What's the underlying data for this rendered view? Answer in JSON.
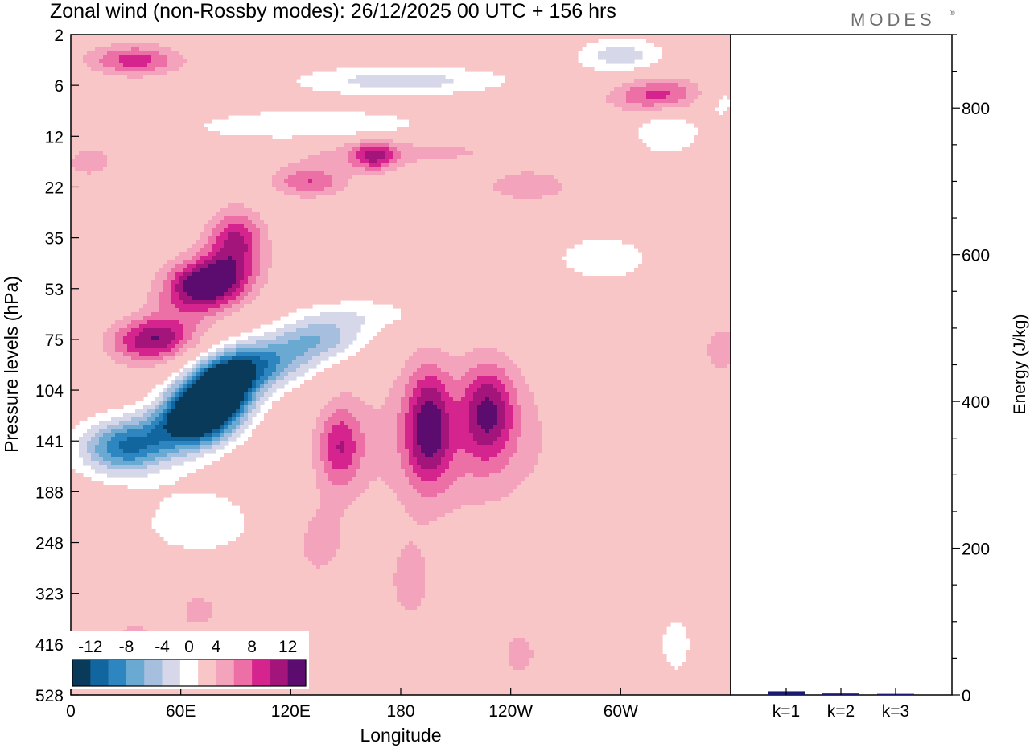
{
  "title": "Zonal wind (non-Rossby modes):  26/12/2025  00 UTC  + 156 hrs",
  "logo_text": "MODES",
  "logo_mark": "®",
  "chart_data": [
    {
      "type": "heatmap",
      "name": "zonal-wind-section",
      "xlabel": "Longitude",
      "ylabel": "Pressure levels (hPa)",
      "x_ticks": [
        "0",
        "60E",
        "120E",
        "180",
        "120W",
        "60W"
      ],
      "x_tick_values": [
        0,
        60,
        120,
        180,
        240,
        300
      ],
      "xlim": [
        0,
        360
      ],
      "y_ticks": [
        "2",
        "6",
        "12",
        "22",
        "35",
        "53",
        "75",
        "104",
        "141",
        "188",
        "248",
        "323",
        "416",
        "528"
      ],
      "colorbar": {
        "labels": [
          "-12",
          "-8",
          "-4",
          "0",
          "4",
          "8",
          "12"
        ],
        "levels": [
          -14,
          -12,
          -10,
          -8,
          -6,
          -4,
          -2,
          2,
          4,
          6,
          8,
          10,
          12,
          14
        ],
        "colors": [
          "#0a3a5a",
          "#1266a0",
          "#2e86c1",
          "#6aa9d2",
          "#a7bfdf",
          "#d6d8ea",
          "#ffffff",
          "#f8c6c6",
          "#f4a3bd",
          "#ec6fa6",
          "#d6248f",
          "#a3157a",
          "#5c0c6e"
        ]
      },
      "features": [
        {
          "lon": 70,
          "lev": 7.5,
          "lon_w": 22,
          "lev_w": 0.6,
          "tilt": -0.08,
          "amp": -20
        },
        {
          "lon": 82,
          "lev": 6.9,
          "lon_w": 18,
          "lev_w": 0.55,
          "tilt": -0.08,
          "amp": -16
        },
        {
          "lon": 30,
          "lev": 8.1,
          "lon_w": 25,
          "lev_w": 0.55,
          "tilt": -0.03,
          "amp": -12
        },
        {
          "lon": 105,
          "lev": 6.5,
          "lon_w": 25,
          "lev_w": 0.5,
          "tilt": -0.05,
          "amp": -9
        },
        {
          "lon": 135,
          "lev": 6.0,
          "lon_w": 25,
          "lev_w": 0.45,
          "tilt": -0.04,
          "amp": -7
        },
        {
          "lon": 70,
          "lev": 9.6,
          "lon_w": 40,
          "lev_w": 0.9,
          "tilt": 0,
          "amp": -3
        },
        {
          "lon": 75,
          "lev": 4.9,
          "lon_w": 22,
          "lev_w": 0.55,
          "tilt": -0.1,
          "amp": 14
        },
        {
          "lon": 45,
          "lev": 6.0,
          "lon_w": 22,
          "lev_w": 0.45,
          "tilt": -0.07,
          "amp": 10
        },
        {
          "lon": 90,
          "lev": 4.0,
          "lon_w": 15,
          "lev_w": 0.55,
          "tilt": 0,
          "amp": 8
        },
        {
          "lon": 195,
          "lev": 7.7,
          "lon_w": 12,
          "lev_w": 1.1,
          "tilt": 0,
          "amp": 9
        },
        {
          "lon": 228,
          "lev": 7.4,
          "lon_w": 14,
          "lev_w": 0.9,
          "tilt": 0,
          "amp": 8
        },
        {
          "lon": 147,
          "lev": 8.1,
          "lon_w": 12,
          "lev_w": 0.8,
          "tilt": 0,
          "amp": 7
        },
        {
          "lon": 210,
          "lev": 8.0,
          "lon_w": 55,
          "lev_w": 1.5,
          "tilt": 0,
          "amp": 4
        },
        {
          "lon": 185,
          "lev": 10.8,
          "lon_w": 15,
          "lev_w": 1.0,
          "tilt": 0,
          "amp": 2.6
        },
        {
          "lon": 135,
          "lev": 10.0,
          "lon_w": 20,
          "lev_w": 1.0,
          "tilt": 0,
          "amp": 2.6
        },
        {
          "lon": 70,
          "lev": 11.3,
          "lon_w": 18,
          "lev_w": 0.7,
          "tilt": 0,
          "amp": 2.4
        },
        {
          "lon": 130,
          "lev": 1.8,
          "lon_w": 70,
          "lev_w": 0.35,
          "tilt": -0.05,
          "amp": -4
        },
        {
          "lon": 180,
          "lev": 0.9,
          "lon_w": 60,
          "lev_w": 0.3,
          "tilt": -0.04,
          "amp": -5
        },
        {
          "lon": 300,
          "lev": 0.4,
          "lon_w": 25,
          "lev_w": 0.35,
          "tilt": 0,
          "amp": -5
        },
        {
          "lon": 325,
          "lev": 1.9,
          "lon_w": 20,
          "lev_w": 0.5,
          "tilt": 0,
          "amp": -4
        },
        {
          "lon": 290,
          "lev": 4.4,
          "lon_w": 45,
          "lev_w": 0.8,
          "tilt": 0,
          "amp": -2.5
        },
        {
          "lon": 160,
          "lev": 5.5,
          "lon_w": 35,
          "lev_w": 0.35,
          "tilt": -0.04,
          "amp": -3
        },
        {
          "lon": 35,
          "lev": 0.5,
          "lon_w": 25,
          "lev_w": 0.3,
          "tilt": 0,
          "amp": 7
        },
        {
          "lon": 320,
          "lev": 1.2,
          "lon_w": 25,
          "lev_w": 0.35,
          "tilt": -0.06,
          "amp": 7
        },
        {
          "lon": 175,
          "lev": 2.3,
          "lon_w": 70,
          "lev_w": 0.3,
          "tilt": -0.04,
          "amp": 3
        },
        {
          "lon": 165,
          "lev": 2.4,
          "lon_w": 12,
          "lev_w": 0.3,
          "tilt": 0,
          "amp": 7
        },
        {
          "lon": 130,
          "lev": 2.9,
          "lon_w": 20,
          "lev_w": 0.3,
          "tilt": 0,
          "amp": 6
        },
        {
          "lon": 250,
          "lev": 3.0,
          "lon_w": 30,
          "lev_w": 0.4,
          "tilt": 0,
          "amp": 3
        },
        {
          "lon": 355,
          "lev": 6.2,
          "lon_w": 12,
          "lev_w": 0.6,
          "tilt": 0,
          "amp": 3
        },
        {
          "lon": 355,
          "lev": 1.3,
          "lon_w": 10,
          "lev_w": 0.4,
          "tilt": 0,
          "amp": -3
        },
        {
          "lon": 330,
          "lev": 12.0,
          "lon_w": 15,
          "lev_w": 1.0,
          "tilt": 0,
          "amp": -2.5
        },
        {
          "lon": 35,
          "lev": 12.0,
          "lon_w": 15,
          "lev_w": 0.8,
          "tilt": 0,
          "amp": 2.5
        },
        {
          "lon": 245,
          "lev": 12.2,
          "lon_w": 15,
          "lev_w": 0.8,
          "tilt": 0,
          "amp": 2.4
        },
        {
          "lon": 10,
          "lev": 2.5,
          "lon_w": 20,
          "lev_w": 0.5,
          "tilt": 0,
          "amp": 2.5
        }
      ]
    },
    {
      "type": "bar",
      "name": "energy-panel",
      "categories": [
        "k=1",
        "k=2",
        "k=3"
      ],
      "values": [
        5,
        2,
        1.5
      ],
      "ylabel": "Energy (J/kg)",
      "ylim": [
        0,
        900
      ],
      "y_ticks": [
        0,
        200,
        400,
        600,
        800
      ],
      "bar_color": "#1a1a6e"
    }
  ]
}
